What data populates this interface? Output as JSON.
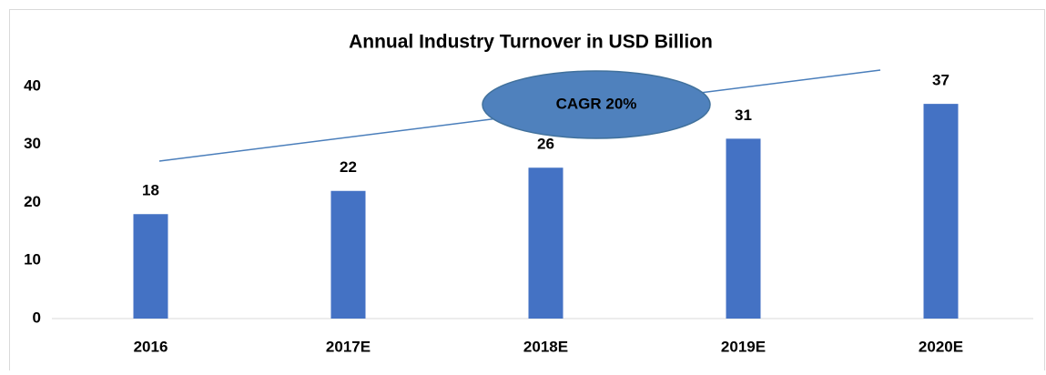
{
  "chart_data": {
    "type": "bar",
    "title": "Annual Industry Turnover in USD Billion",
    "categories": [
      "2016",
      "2017E",
      "2018E",
      "2019E",
      "2020E"
    ],
    "values": [
      18,
      22,
      26,
      31,
      37
    ],
    "color": "#4472c4",
    "ylim": [
      0,
      40
    ],
    "yticks": [
      0,
      10,
      20,
      30,
      40
    ],
    "grid": false,
    "annotation": "CAGR 20%"
  }
}
